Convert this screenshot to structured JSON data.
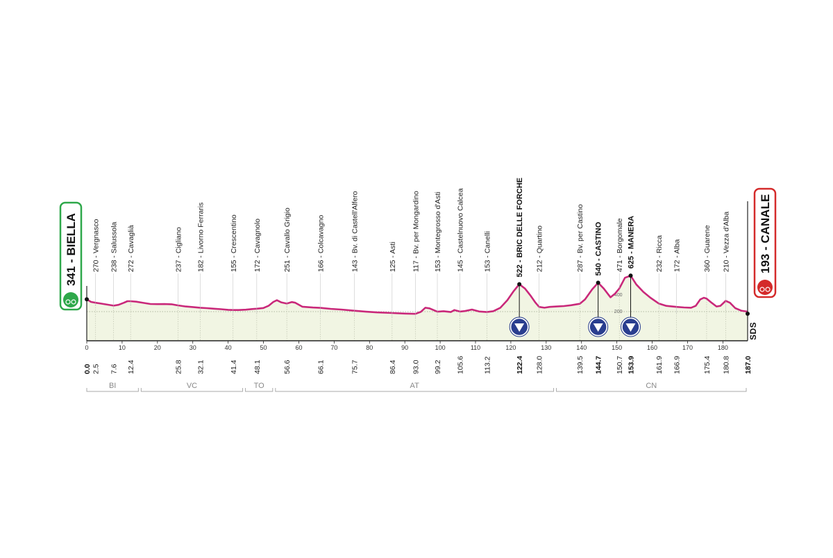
{
  "chart_data": {
    "type": "area",
    "title": "",
    "xlabel": "",
    "ylabel": "",
    "xlim": [
      0,
      187
    ],
    "ylim": [
      0,
      680
    ],
    "grid": false,
    "colors": {
      "line": "#c9287a",
      "fill": "#f1f5e3",
      "start": "#2ea84a",
      "finish": "#d42a2a",
      "climb_marker": "#2a3e8f"
    },
    "start": {
      "label": "341 - BIELLA",
      "km": 0.0,
      "altitude": 341
    },
    "finish": {
      "label": "193 - CANALE",
      "km": 187.0,
      "altitude": 193
    },
    "axis_ticks": [
      "0",
      "10",
      "20",
      "30",
      "40",
      "50",
      "60",
      "70",
      "80",
      "90",
      "100",
      "110",
      "120",
      "130",
      "140",
      "150",
      "160",
      "170",
      "180"
    ],
    "elevation_ticks": [
      "200",
      "400"
    ],
    "profile": [
      [
        0.0,
        341
      ],
      [
        1.2,
        310
      ],
      [
        2.5,
        300
      ],
      [
        4,
        290
      ],
      [
        5.5,
        280
      ],
      [
        7.6,
        265
      ],
      [
        9,
        275
      ],
      [
        10.5,
        300
      ],
      [
        11.5,
        318
      ],
      [
        12.4,
        318
      ],
      [
        14,
        312
      ],
      [
        16,
        298
      ],
      [
        18,
        285
      ],
      [
        20,
        283
      ],
      [
        22,
        284
      ],
      [
        24,
        281
      ],
      [
        25.8,
        268
      ],
      [
        28,
        255
      ],
      [
        30,
        248
      ],
      [
        32.1,
        240
      ],
      [
        34,
        235
      ],
      [
        36,
        228
      ],
      [
        38,
        222
      ],
      [
        40,
        215
      ],
      [
        41.4,
        212
      ],
      [
        43,
        212
      ],
      [
        45,
        216
      ],
      [
        47,
        225
      ],
      [
        48.1,
        228
      ],
      [
        50,
        236
      ],
      [
        51.5,
        265
      ],
      [
        52.8,
        310
      ],
      [
        53.8,
        330
      ],
      [
        55,
        305
      ],
      [
        56.6,
        290
      ],
      [
        58,
        308
      ],
      [
        59,
        300
      ],
      [
        61,
        252
      ],
      [
        64,
        242
      ],
      [
        66.1,
        238
      ],
      [
        69,
        226
      ],
      [
        72,
        218
      ],
      [
        75.7,
        204
      ],
      [
        79,
        192
      ],
      [
        82,
        184
      ],
      [
        86.4,
        176
      ],
      [
        90,
        170
      ],
      [
        93.0,
        166
      ],
      [
        94.5,
        190
      ],
      [
        95.8,
        240
      ],
      [
        97,
        232
      ],
      [
        99.2,
        192
      ],
      [
        101,
        198
      ],
      [
        103,
        188
      ],
      [
        104,
        212
      ],
      [
        105.6,
        194
      ],
      [
        107,
        200
      ],
      [
        109,
        218
      ],
      [
        111,
        195
      ],
      [
        113.2,
        188
      ],
      [
        115,
        198
      ],
      [
        117,
        238
      ],
      [
        119,
        330
      ],
      [
        120.8,
        440
      ],
      [
        122.4,
        522
      ],
      [
        124,
        470
      ],
      [
        125.5,
        390
      ],
      [
        127,
        300
      ],
      [
        128.0,
        250
      ],
      [
        129.5,
        240
      ],
      [
        131,
        250
      ],
      [
        133,
        255
      ],
      [
        135,
        260
      ],
      [
        137,
        270
      ],
      [
        139.5,
        287
      ],
      [
        141,
        340
      ],
      [
        143,
        460
      ],
      [
        144.7,
        540
      ],
      [
        146.3,
        470
      ],
      [
        148.2,
        365
      ],
      [
        149.5,
        410
      ],
      [
        150.7,
        471
      ],
      [
        152.3,
        600
      ],
      [
        153.9,
        625
      ],
      [
        155.5,
        520
      ],
      [
        157.5,
        430
      ],
      [
        159.5,
        360
      ],
      [
        161.9,
        290
      ],
      [
        164,
        262
      ],
      [
        166.9,
        250
      ],
      [
        169,
        243
      ],
      [
        171,
        240
      ],
      [
        172.3,
        262
      ],
      [
        173.6,
        340
      ],
      [
        174.6,
        360
      ],
      [
        175.4,
        350
      ],
      [
        176.8,
        300
      ],
      [
        178.2,
        255
      ],
      [
        179.3,
        262
      ],
      [
        180.8,
        322
      ],
      [
        182,
        300
      ],
      [
        183.5,
        235
      ],
      [
        185.2,
        205
      ],
      [
        187.0,
        193
      ]
    ],
    "waypoints": [
      {
        "km_label": "2.5",
        "name": "270 - Vergnasco",
        "km": 2.5,
        "alt": 270
      },
      {
        "km_label": "7.6",
        "name": "238 - Salussola",
        "km": 7.6,
        "alt": 238
      },
      {
        "km_label": "12.4",
        "name": "272 - Cavaglià",
        "km": 12.4,
        "alt": 272
      },
      {
        "km_label": "25.8",
        "name": "237 - Cigliano",
        "km": 25.8,
        "alt": 237
      },
      {
        "km_label": "32.1",
        "name": "182 - Livorno Ferraris",
        "km": 32.1,
        "alt": 182
      },
      {
        "km_label": "41.4",
        "name": "155 - Crescentino",
        "km": 41.4,
        "alt": 155
      },
      {
        "km_label": "48.1",
        "name": "172 - Cavagnolo",
        "km": 48.1,
        "alt": 172
      },
      {
        "km_label": "56.6",
        "name": "251 - Cavallo Grigio",
        "km": 56.6,
        "alt": 251
      },
      {
        "km_label": "66.1",
        "name": "166 - Colcavagno",
        "km": 66.1,
        "alt": 166
      },
      {
        "km_label": "75.7",
        "name": "143 - Bv. di Castell'Alfero",
        "km": 75.7,
        "alt": 143
      },
      {
        "km_label": "86.4",
        "name": "125 - Asti",
        "km": 86.4,
        "alt": 125
      },
      {
        "km_label": "93.0",
        "name": "117 - Bv. per Mongardino",
        "km": 93.0,
        "alt": 117
      },
      {
        "km_label": "99.2",
        "name": "153 - Montegrosso d'Asti",
        "km": 99.2,
        "alt": 153
      },
      {
        "km_label": "105.6",
        "name": "145 - Castelnuovo Calcea",
        "km": 105.6,
        "alt": 145
      },
      {
        "km_label": "113.2",
        "name": "153 - Canelli",
        "km": 113.2,
        "alt": 153
      },
      {
        "km_label": "122.4",
        "name": "522 - BRIC DELLE FORCHE",
        "km": 122.4,
        "alt": 522,
        "major": true,
        "gpm": true
      },
      {
        "km_label": "128.0",
        "name": "212 - Quartino",
        "km": 128.0,
        "alt": 212
      },
      {
        "km_label": "139.5",
        "name": "287 - Bv. per Castino",
        "km": 139.5,
        "alt": 287
      },
      {
        "km_label": "144.7",
        "name": "540 - CASTINO",
        "km": 144.7,
        "alt": 540,
        "major": true,
        "gpm": true
      },
      {
        "km_label": "150.7",
        "name": "471 - Borgomale",
        "km": 150.7,
        "alt": 471
      },
      {
        "km_label": "153.9",
        "name": "625 - MANERA",
        "km": 153.9,
        "alt": 625,
        "major": true,
        "gpm": true
      },
      {
        "km_label": "161.9",
        "name": "232 - Ricca",
        "km": 161.9,
        "alt": 232
      },
      {
        "km_label": "166.9",
        "name": "172 - Alba",
        "km": 166.9,
        "alt": 172
      },
      {
        "km_label": "175.4",
        "name": "360 - Guarene",
        "km": 175.4,
        "alt": 360
      },
      {
        "km_label": "180.8",
        "name": "210 - Vezza d'Alba",
        "km": 180.8,
        "alt": 210
      }
    ],
    "provinces": [
      {
        "code": "BI",
        "from": 0,
        "to": 15
      },
      {
        "code": "VC",
        "from": 15,
        "to": 44.5
      },
      {
        "code": "TO",
        "from": 44.5,
        "to": 53
      },
      {
        "code": "AT",
        "from": 53,
        "to": 132.5
      },
      {
        "code": "CN",
        "from": 132.5,
        "to": 187
      }
    ],
    "logo": "SDS"
  }
}
